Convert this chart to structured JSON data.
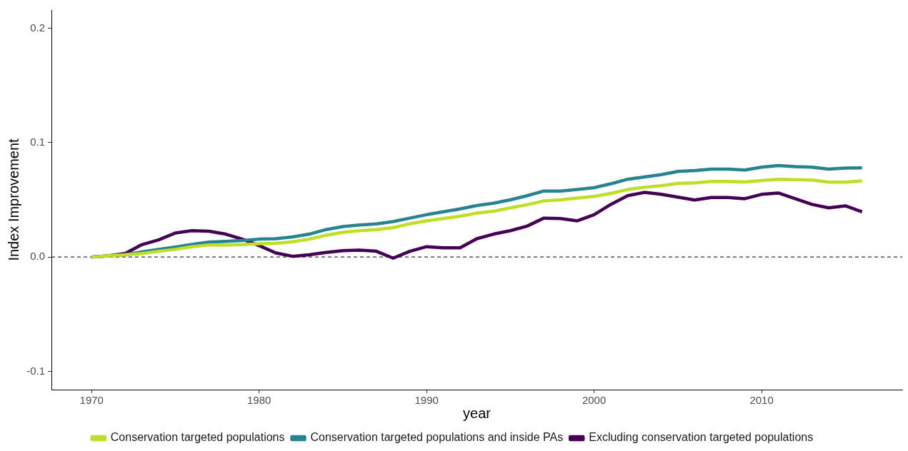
{
  "chart_data": {
    "type": "line",
    "xlabel": "year",
    "ylabel": "Index Improvement",
    "x": [
      1970,
      1971,
      1972,
      1973,
      1974,
      1975,
      1976,
      1977,
      1978,
      1979,
      1980,
      1981,
      1982,
      1983,
      1984,
      1985,
      1986,
      1987,
      1988,
      1989,
      1990,
      1991,
      1992,
      1993,
      1994,
      1995,
      1996,
      1997,
      1998,
      1999,
      2000,
      2001,
      2002,
      2003,
      2004,
      2005,
      2006,
      2007,
      2008,
      2009,
      2010,
      2011,
      2012,
      2013,
      2014,
      2015,
      2016
    ],
    "series": [
      {
        "name": "Conservation targeted populations",
        "color": "#bedf26",
        "values": [
          0,
          0.001,
          0.002,
          0.003,
          0.005,
          0.0067,
          0.009,
          0.0106,
          0.0104,
          0.0108,
          0.0116,
          0.012,
          0.0133,
          0.0156,
          0.019,
          0.0216,
          0.023,
          0.024,
          0.0257,
          0.029,
          0.0316,
          0.0336,
          0.0357,
          0.0384,
          0.04,
          0.043,
          0.0457,
          0.049,
          0.05,
          0.0515,
          0.053,
          0.0556,
          0.059,
          0.061,
          0.0623,
          0.0644,
          0.0648,
          0.066,
          0.066,
          0.0656,
          0.0669,
          0.068,
          0.0677,
          0.0673,
          0.0654,
          0.0654,
          0.0665
        ]
      },
      {
        "name": "Conservation targeted populations and inside PAs",
        "color": "#26838f",
        "values": [
          0,
          0.001,
          0.002,
          0.0045,
          0.0067,
          0.0087,
          0.011,
          0.013,
          0.0137,
          0.0145,
          0.0156,
          0.016,
          0.0175,
          0.02,
          0.024,
          0.0266,
          0.028,
          0.029,
          0.031,
          0.034,
          0.037,
          0.0395,
          0.042,
          0.045,
          0.047,
          0.05,
          0.0536,
          0.0577,
          0.0577,
          0.059,
          0.0606,
          0.064,
          0.068,
          0.07,
          0.072,
          0.0748,
          0.0756,
          0.0768,
          0.0768,
          0.076,
          0.0785,
          0.08,
          0.079,
          0.0785,
          0.0768,
          0.0777,
          0.078
        ]
      },
      {
        "name": "Excluding conservation targeted populations",
        "color": "#440154",
        "values": [
          0,
          0.001,
          0.003,
          0.0108,
          0.015,
          0.021,
          0.023,
          0.0225,
          0.02,
          0.0156,
          0.01,
          0.0035,
          0.0006,
          0.002,
          0.004,
          0.0055,
          0.006,
          0.005,
          -0.001,
          0.005,
          0.009,
          0.008,
          0.008,
          0.016,
          0.02,
          0.023,
          0.027,
          0.034,
          0.0336,
          0.0316,
          0.037,
          0.046,
          0.0536,
          0.0565,
          0.0548,
          0.0523,
          0.0498,
          0.052,
          0.052,
          0.051,
          0.0548,
          0.056,
          0.051,
          0.046,
          0.043,
          0.0447,
          0.0395
        ]
      }
    ],
    "xlim": [
      1967.6,
      2018.4
    ],
    "ylim": [
      -0.116,
      0.216
    ],
    "xticks": [
      1970,
      1980,
      1990,
      2000,
      2010
    ],
    "yticks": [
      -0.1,
      {
        "value": 0,
        "label": "0.0"
      },
      0.1,
      0.2
    ],
    "ref_lines": [
      {
        "axis": "y",
        "value": 0,
        "color": "#333333",
        "line_style": "dashed"
      }
    ],
    "legend": "bottom",
    "marker": "none",
    "line_style": "solid"
  }
}
